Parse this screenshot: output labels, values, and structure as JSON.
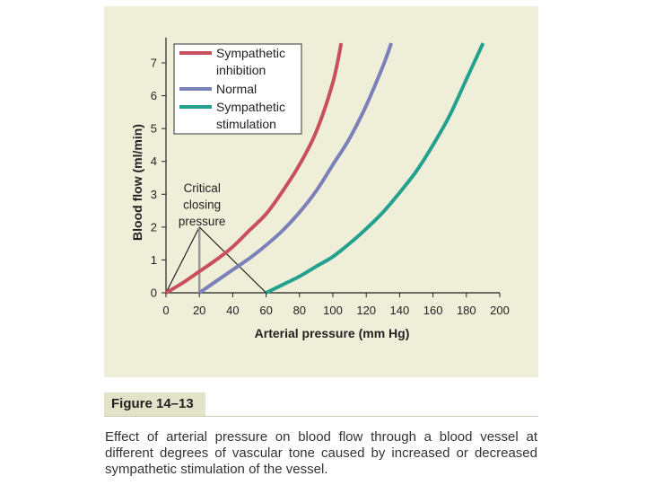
{
  "figure": {
    "label": "Figure 14–13",
    "caption": "Effect of arterial pressure on blood flow through a blood vessel at different degrees of vascular tone caused by increased or decreased sympathetic stimulation of the vessel."
  },
  "chart_data": {
    "type": "line",
    "xlabel": "Arterial pressure (mm Hg)",
    "ylabel": "Blood flow (ml/min)",
    "xlim": [
      0,
      200
    ],
    "ylim": [
      0,
      7.5
    ],
    "xticks": [
      0,
      20,
      40,
      60,
      80,
      100,
      120,
      140,
      160,
      180,
      200
    ],
    "yticks": [
      0,
      1,
      2,
      3,
      4,
      5,
      6,
      7
    ],
    "grid": false,
    "legend_position": "top-left",
    "series": [
      {
        "name": "Sympathetic inhibition",
        "color": "#c8505d",
        "x": [
          0,
          10,
          20,
          30,
          40,
          50,
          60,
          70,
          80,
          90,
          100,
          105
        ],
        "y": [
          0,
          0.3,
          0.65,
          1.0,
          1.4,
          1.9,
          2.4,
          3.1,
          3.9,
          4.9,
          6.4,
          7.6
        ]
      },
      {
        "name": "Normal",
        "color": "#7b80b8",
        "x": [
          20,
          30,
          40,
          50,
          60,
          70,
          80,
          90,
          100,
          110,
          120,
          130,
          135
        ],
        "y": [
          0,
          0.35,
          0.7,
          1.05,
          1.45,
          1.9,
          2.45,
          3.1,
          3.9,
          4.7,
          5.7,
          6.9,
          7.6
        ]
      },
      {
        "name": "Sympathetic stimulation",
        "color": "#23a08e",
        "x": [
          60,
          70,
          80,
          90,
          100,
          110,
          120,
          130,
          140,
          150,
          160,
          170,
          180,
          190
        ],
        "y": [
          0,
          0.25,
          0.5,
          0.8,
          1.1,
          1.5,
          1.95,
          2.45,
          3.05,
          3.7,
          4.5,
          5.4,
          6.5,
          7.6
        ]
      }
    ],
    "annotations": [
      {
        "text_lines": [
          "Critical",
          "closing",
          "pressure"
        ],
        "points": [
          [
            0,
            0
          ],
          [
            20,
            0
          ],
          [
            60,
            0
          ]
        ],
        "vertex": [
          20,
          2.0
        ]
      }
    ]
  }
}
